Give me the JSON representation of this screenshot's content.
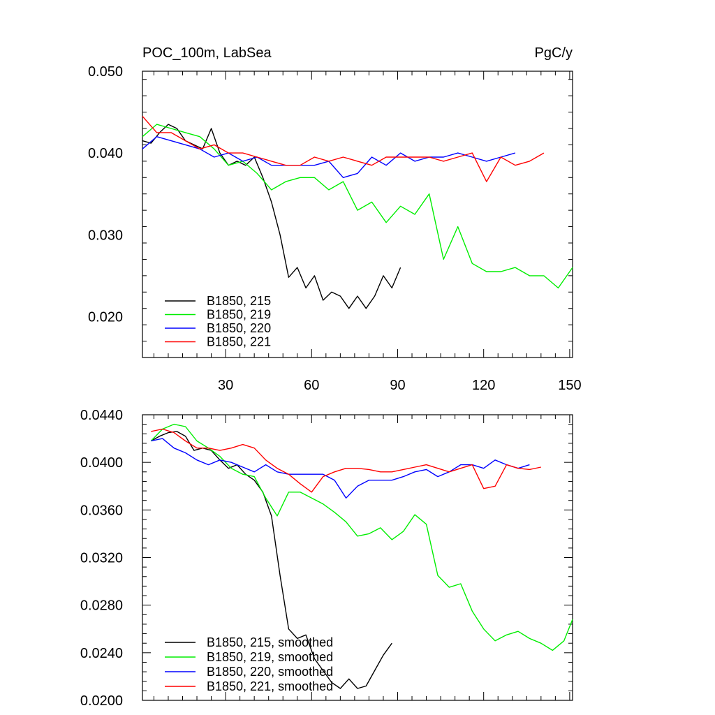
{
  "figure": {
    "top_title": "POC_100m, LabSea",
    "top_units": "PgC/y"
  },
  "chart_data": [
    {
      "type": "line",
      "title": "POC_100m, LabSea",
      "units": "PgC/y",
      "xlim": [
        1,
        151
      ],
      "ylim": [
        0.015,
        0.05
      ],
      "xticks": [
        30,
        60,
        90,
        120,
        150
      ],
      "yticks": [
        0.02,
        0.03,
        0.04,
        0.05
      ],
      "ytick_labels": [
        "0.020",
        "0.030",
        "0.040",
        "0.050"
      ],
      "legend_position": "bottom-left",
      "series": [
        {
          "name": "B1850, 215",
          "color": "#000000",
          "x": [
            1,
            4,
            7,
            10,
            13,
            16,
            19,
            22,
            25,
            28,
            31,
            34,
            37,
            40,
            43,
            46,
            49,
            52,
            55,
            58,
            61,
            64,
            67,
            70,
            73,
            76,
            79,
            82,
            85,
            88,
            91
          ],
          "y": [
            0.0415,
            0.0412,
            0.0425,
            0.0435,
            0.043,
            0.0415,
            0.041,
            0.0405,
            0.043,
            0.04,
            0.0385,
            0.039,
            0.0385,
            0.0395,
            0.037,
            0.034,
            0.03,
            0.0248,
            0.026,
            0.0235,
            0.025,
            0.022,
            0.023,
            0.0225,
            0.021,
            0.0225,
            0.021,
            0.0225,
            0.025,
            0.0235,
            0.026
          ]
        },
        {
          "name": "B1850, 219",
          "color": "#00ee00",
          "x": [
            1,
            6,
            11,
            16,
            21,
            26,
            31,
            36,
            41,
            46,
            51,
            56,
            61,
            66,
            71,
            76,
            81,
            86,
            91,
            96,
            101,
            106,
            111,
            116,
            121,
            126,
            131,
            136,
            141,
            146,
            151
          ],
          "y": [
            0.042,
            0.0435,
            0.043,
            0.0425,
            0.042,
            0.0405,
            0.0385,
            0.039,
            0.0375,
            0.0355,
            0.0365,
            0.037,
            0.037,
            0.0355,
            0.0365,
            0.033,
            0.034,
            0.0315,
            0.0335,
            0.0325,
            0.035,
            0.027,
            0.031,
            0.0265,
            0.0255,
            0.0255,
            0.026,
            0.025,
            0.025,
            0.0235,
            0.026
          ]
        },
        {
          "name": "B1850, 220",
          "color": "#0000ff",
          "x": [
            1,
            6,
            11,
            16,
            21,
            26,
            31,
            36,
            41,
            46,
            51,
            56,
            61,
            66,
            71,
            76,
            81,
            86,
            91,
            96,
            101,
            106,
            111,
            116,
            121,
            126,
            131
          ],
          "y": [
            0.0405,
            0.042,
            0.0415,
            0.041,
            0.0405,
            0.0395,
            0.04,
            0.039,
            0.0395,
            0.0385,
            0.0385,
            0.0385,
            0.0385,
            0.039,
            0.037,
            0.0375,
            0.0395,
            0.0385,
            0.04,
            0.039,
            0.0395,
            0.0395,
            0.04,
            0.0395,
            0.039,
            0.0395,
            0.04
          ]
        },
        {
          "name": "B1850, 221",
          "color": "#ff0000",
          "x": [
            1,
            6,
            11,
            16,
            21,
            26,
            31,
            36,
            41,
            46,
            51,
            56,
            61,
            66,
            71,
            76,
            81,
            86,
            91,
            96,
            101,
            106,
            111,
            116,
            121,
            126,
            131,
            136,
            141
          ],
          "y": [
            0.0445,
            0.0425,
            0.0425,
            0.0415,
            0.0405,
            0.041,
            0.04,
            0.04,
            0.0395,
            0.039,
            0.0385,
            0.0385,
            0.0395,
            0.039,
            0.0395,
            0.039,
            0.0385,
            0.0395,
            0.0395,
            0.0395,
            0.0395,
            0.039,
            0.0395,
            0.04,
            0.0365,
            0.0395,
            0.0385,
            0.039,
            0.04
          ]
        }
      ]
    },
    {
      "type": "line",
      "xlim": [
        1,
        151
      ],
      "ylim": [
        0.02,
        0.044
      ],
      "xticks": [
        30,
        60,
        90,
        120,
        150
      ],
      "yticks": [
        0.02,
        0.024,
        0.028,
        0.032,
        0.036,
        0.04,
        0.044
      ],
      "ytick_labels": [
        "0.0200",
        "0.0240",
        "0.0280",
        "0.0320",
        "0.0360",
        "0.0400",
        "0.0440"
      ],
      "legend_position": "bottom-left",
      "series": [
        {
          "name": "B1850, 215, smoothed",
          "color": "#000000",
          "x": [
            4,
            7,
            10,
            13,
            16,
            19,
            22,
            25,
            28,
            31,
            34,
            37,
            40,
            43,
            46,
            49,
            52,
            55,
            58,
            61,
            64,
            67,
            70,
            73,
            76,
            79,
            82,
            85,
            88
          ],
          "y": [
            0.0418,
            0.0422,
            0.0425,
            0.0426,
            0.0422,
            0.041,
            0.0412,
            0.041,
            0.0402,
            0.0395,
            0.0398,
            0.039,
            0.0385,
            0.0375,
            0.0355,
            0.0305,
            0.026,
            0.0252,
            0.0255,
            0.0235,
            0.0225,
            0.0215,
            0.021,
            0.0218,
            0.021,
            0.0212,
            0.0225,
            0.0238,
            0.0248
          ]
        },
        {
          "name": "B1850, 219, smoothed",
          "color": "#00ee00",
          "x": [
            4,
            8,
            12,
            16,
            20,
            24,
            28,
            32,
            36,
            40,
            44,
            48,
            52,
            56,
            60,
            64,
            68,
            72,
            76,
            80,
            84,
            88,
            92,
            96,
            100,
            104,
            108,
            112,
            116,
            120,
            124,
            128,
            132,
            136,
            140,
            144,
            148,
            151
          ],
          "y": [
            0.0418,
            0.0428,
            0.0432,
            0.043,
            0.0418,
            0.0412,
            0.0405,
            0.0395,
            0.039,
            0.0388,
            0.037,
            0.0355,
            0.0375,
            0.0375,
            0.037,
            0.0365,
            0.0358,
            0.035,
            0.0338,
            0.034,
            0.0345,
            0.0335,
            0.0342,
            0.0356,
            0.0348,
            0.0305,
            0.0295,
            0.0298,
            0.0275,
            0.026,
            0.025,
            0.0255,
            0.0258,
            0.0252,
            0.0248,
            0.0242,
            0.025,
            0.0268
          ]
        },
        {
          "name": "B1850, 220, smoothed",
          "color": "#0000ff",
          "x": [
            4,
            8,
            12,
            16,
            20,
            24,
            28,
            32,
            36,
            40,
            44,
            48,
            52,
            56,
            60,
            64,
            68,
            72,
            76,
            80,
            84,
            88,
            92,
            96,
            100,
            104,
            108,
            112,
            116,
            120,
            124,
            128,
            132,
            136
          ],
          "y": [
            0.0418,
            0.042,
            0.0412,
            0.0408,
            0.0402,
            0.0398,
            0.0402,
            0.04,
            0.0396,
            0.0392,
            0.0398,
            0.0392,
            0.039,
            0.039,
            0.039,
            0.039,
            0.0385,
            0.037,
            0.038,
            0.0385,
            0.0385,
            0.0385,
            0.0388,
            0.0392,
            0.0394,
            0.0388,
            0.0392,
            0.0398,
            0.0398,
            0.0395,
            0.0402,
            0.0398,
            0.0395,
            0.0398
          ]
        },
        {
          "name": "B1850, 221, smoothed",
          "color": "#ff0000",
          "x": [
            4,
            8,
            12,
            16,
            20,
            24,
            28,
            32,
            36,
            40,
            44,
            48,
            52,
            56,
            60,
            64,
            68,
            72,
            76,
            80,
            84,
            88,
            92,
            96,
            100,
            104,
            108,
            112,
            116,
            120,
            124,
            128,
            132,
            136,
            140
          ],
          "y": [
            0.0426,
            0.0428,
            0.0425,
            0.0418,
            0.0412,
            0.0412,
            0.041,
            0.0412,
            0.0415,
            0.0412,
            0.0402,
            0.0395,
            0.039,
            0.0382,
            0.0375,
            0.0388,
            0.0392,
            0.0395,
            0.0395,
            0.0394,
            0.0392,
            0.0392,
            0.0394,
            0.0396,
            0.0398,
            0.0395,
            0.0392,
            0.0395,
            0.0398,
            0.0378,
            0.038,
            0.0398,
            0.0395,
            0.0394,
            0.0396
          ]
        }
      ]
    }
  ]
}
